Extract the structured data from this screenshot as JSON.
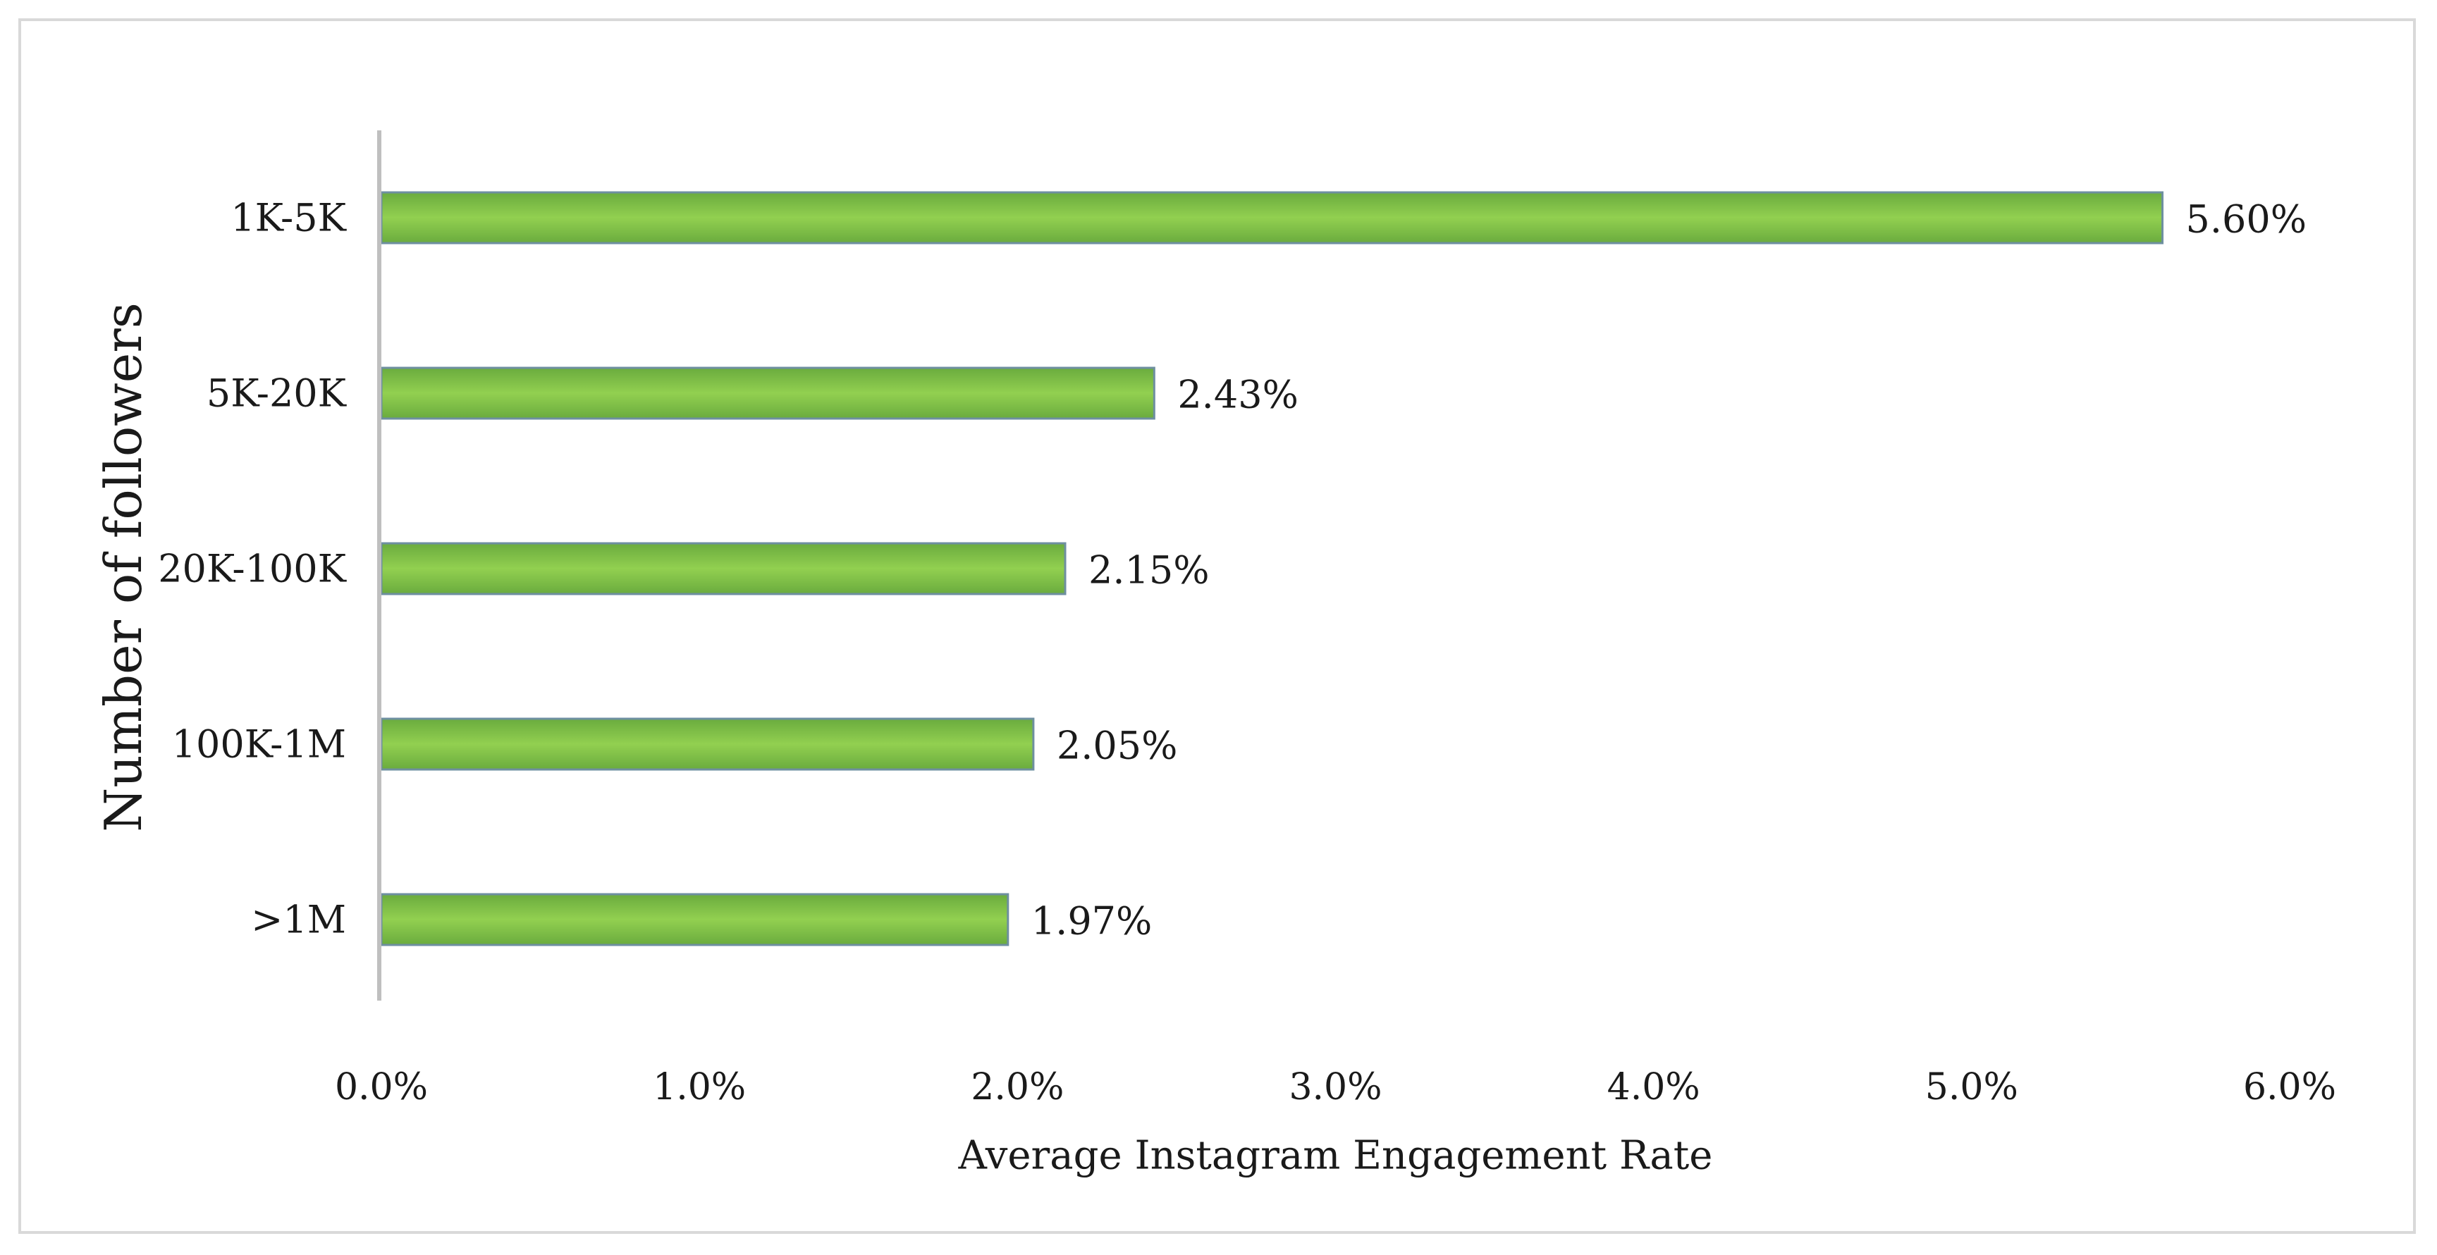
{
  "chart_data": {
    "type": "bar",
    "orientation": "horizontal",
    "title": "",
    "xlabel": "Average Instagram Engagement Rate",
    "ylabel": "Number of followers",
    "categories": [
      "1K-5K",
      "5K-20K",
      "20K-100K",
      "100K-1M",
      ">1M"
    ],
    "values": [
      5.6,
      2.43,
      2.15,
      2.05,
      1.97
    ],
    "value_labels": [
      "5.60%",
      "2.43%",
      "2.15%",
      "2.05%",
      "1.97%"
    ],
    "xlim": [
      0,
      6
    ],
    "x_ticks": [
      0,
      1,
      2,
      3,
      4,
      5,
      6
    ],
    "x_tick_labels": [
      "0.0%",
      "1.0%",
      "2.0%",
      "3.0%",
      "4.0%",
      "5.0%",
      "6.0%"
    ],
    "grid": false,
    "legend": "none",
    "colors": {
      "bar_center": "#92d050",
      "bar_edge": "#6aab3e",
      "bar_border": "#6e8fa0",
      "axis_line": "#bfbfbf"
    }
  }
}
